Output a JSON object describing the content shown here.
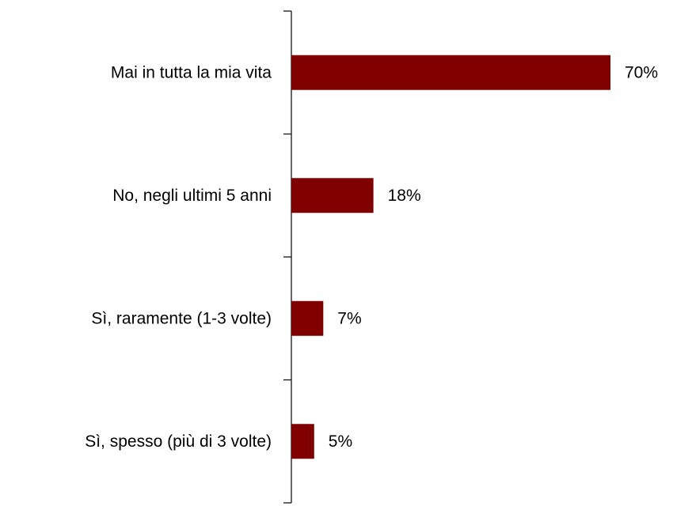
{
  "chart_data": {
    "type": "bar",
    "orientation": "horizontal",
    "categories": [
      "Mai in tutta la mia vita",
      "No, negli ultimi 5 anni",
      "Sì, raramente (1-3 volte)",
      "Sì, spesso (più di 3 volte)"
    ],
    "values": [
      70,
      18,
      7,
      5
    ],
    "value_labels": [
      "70%",
      "18%",
      "7%",
      "5%"
    ],
    "title": "",
    "xlabel": "",
    "ylabel": "",
    "xlim": [
      0,
      70
    ],
    "grid": false,
    "legend": "none",
    "bar_color": "#800000",
    "axis_color": "#000000"
  }
}
